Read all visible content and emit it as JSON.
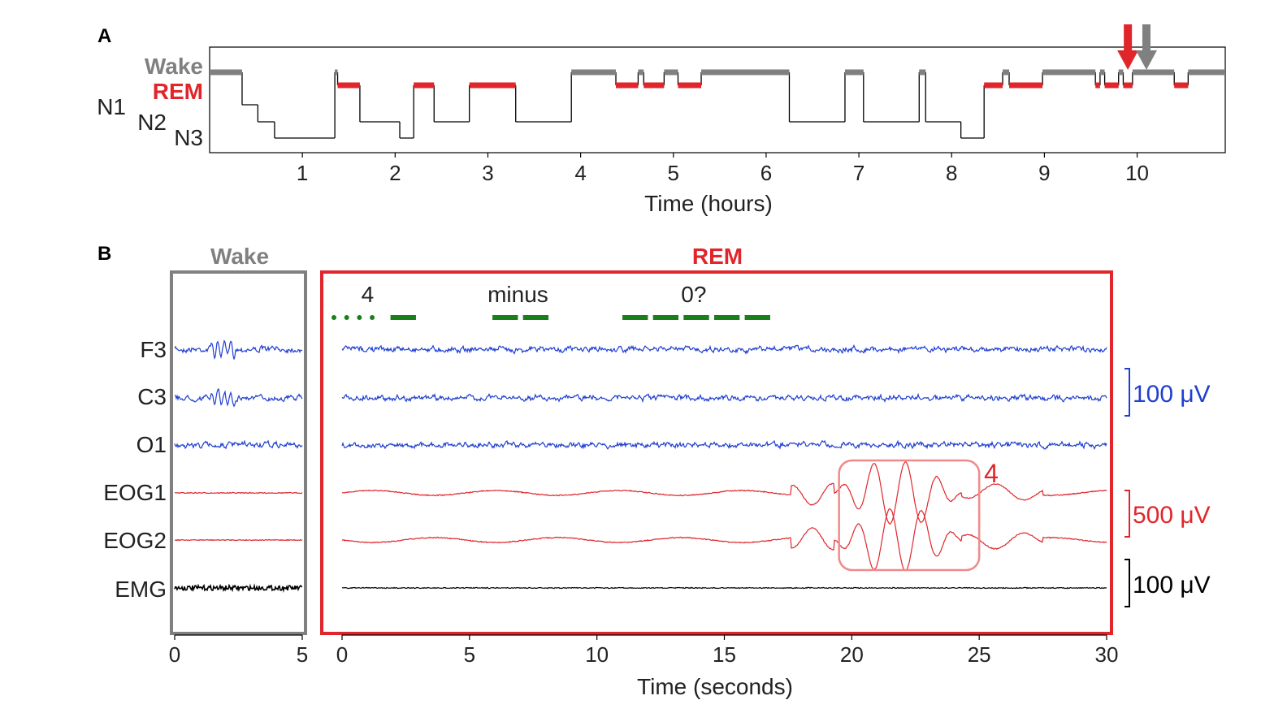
{
  "colors": {
    "wake": "#808080",
    "rem": "#e0262b",
    "nrem": "#000000",
    "eeg": "#1f3fd0",
    "eog": "#e0262b",
    "emg": "#000000",
    "cue": "#1a7f1a",
    "box": "#f08a8a"
  },
  "chart_data": [
    {
      "panel": "A",
      "type": "line",
      "title": "",
      "xlabel": "Time (hours)",
      "ylabel": "",
      "xlim": [
        0,
        10.95
      ],
      "xticks": [
        "1",
        "2",
        "3",
        "4",
        "5",
        "6",
        "7",
        "8",
        "9",
        "10"
      ],
      "stages": [
        "Wake",
        "REM",
        "N1",
        "N2",
        "N3"
      ],
      "hypnogram": [
        [
          0,
          "Wake"
        ],
        [
          0.35,
          "N1"
        ],
        [
          0.52,
          "N2"
        ],
        [
          0.7,
          "N3"
        ],
        [
          1.35,
          "Wake"
        ],
        [
          1.38,
          "REM"
        ],
        [
          1.62,
          "N2"
        ],
        [
          2.05,
          "N3"
        ],
        [
          2.2,
          "REM"
        ],
        [
          2.42,
          "N2"
        ],
        [
          2.8,
          "REM"
        ],
        [
          3.3,
          "N2"
        ],
        [
          3.9,
          "Wake"
        ],
        [
          4.38,
          "REM"
        ],
        [
          4.62,
          "Wake"
        ],
        [
          4.68,
          "REM"
        ],
        [
          4.9,
          "Wake"
        ],
        [
          5.05,
          "REM"
        ],
        [
          5.3,
          "Wake"
        ],
        [
          6.25,
          "N2"
        ],
        [
          6.85,
          "Wake"
        ],
        [
          7.05,
          "N2"
        ],
        [
          7.65,
          "Wake"
        ],
        [
          7.72,
          "N2"
        ],
        [
          8.1,
          "N3"
        ],
        [
          8.35,
          "REM"
        ],
        [
          8.55,
          "Wake"
        ],
        [
          8.62,
          "REM"
        ],
        [
          8.98,
          "Wake"
        ],
        [
          9.55,
          "REM"
        ],
        [
          9.6,
          "Wake"
        ],
        [
          9.65,
          "REM"
        ],
        [
          9.8,
          "Wake"
        ],
        [
          9.85,
          "REM"
        ],
        [
          9.95,
          "Wake"
        ],
        [
          10.4,
          "REM"
        ],
        [
          10.55,
          "Wake"
        ],
        [
          10.95,
          "Wake"
        ]
      ],
      "markers": [
        {
          "x": 9.9,
          "color": "rem"
        },
        {
          "x": 10.1,
          "color": "wake"
        }
      ]
    },
    {
      "panel": "B",
      "type": "line",
      "title": "",
      "xlabel": "Time (seconds)",
      "segments": [
        {
          "label": "Wake",
          "xlim": [
            0,
            5
          ],
          "xticks": [
            "0",
            "5"
          ]
        },
        {
          "label": "REM",
          "xlim": [
            0,
            30
          ],
          "xticks": [
            "0",
            "5",
            "10",
            "15",
            "20",
            "25",
            "30"
          ]
        }
      ],
      "channels": [
        "F3",
        "C3",
        "O1",
        "EOG1",
        "EOG2",
        "EMG"
      ],
      "cue_labels": [
        {
          "text": "4",
          "x": 1.0
        },
        {
          "text": "minus",
          "x": 6.9
        },
        {
          "text": "0?",
          "x": 13.8
        }
      ],
      "cue_dots": [
        0,
        0.5,
        1.0,
        1.5
      ],
      "cue_dashes": [
        [
          1.9,
          2.9
        ],
        [
          5.9,
          6.9
        ],
        [
          7.1,
          8.1
        ],
        [
          11.0,
          12.0
        ],
        [
          12.2,
          13.2
        ],
        [
          13.4,
          14.4
        ],
        [
          14.6,
          15.6
        ],
        [
          15.8,
          16.8
        ]
      ],
      "annotation": {
        "text": "4",
        "x0": 19.5,
        "x1": 25.0
      },
      "scale_bars": [
        {
          "label": "100 μV",
          "color": "eeg"
        },
        {
          "label": "500 μV",
          "color": "eog"
        },
        {
          "label": "100 μV",
          "color": "emg"
        }
      ]
    }
  ]
}
